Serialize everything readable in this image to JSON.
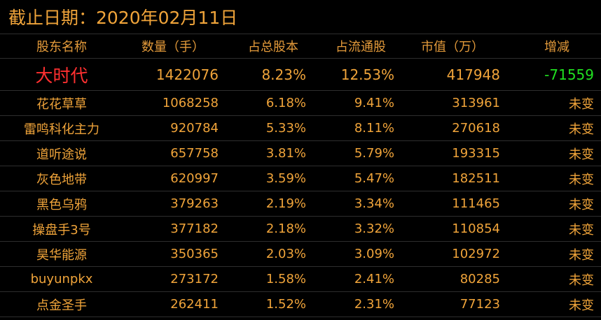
{
  "header": {
    "title": "截止日期：2020年02月11日"
  },
  "table": {
    "columns": [
      "股东名称",
      "数量（手）",
      "占总股本",
      "占流通股",
      "市值（万）",
      "增减"
    ],
    "rows": [
      [
        "大时代",
        "1422076",
        "8.23%",
        "12.53%",
        "417948",
        "-71559"
      ],
      [
        "花花草草",
        "1068258",
        "6.18%",
        "9.41%",
        "313961",
        "未变"
      ],
      [
        "雷鸣科化主力",
        "920784",
        "5.33%",
        "8.11%",
        "270618",
        "未变"
      ],
      [
        "道听途说",
        "657758",
        "3.81%",
        "5.79%",
        "193315",
        "未变"
      ],
      [
        "灰色地带",
        "620997",
        "3.59%",
        "5.47%",
        "182511",
        "未变"
      ],
      [
        "黑色乌鸦",
        "379263",
        "2.19%",
        "3.34%",
        "111465",
        "未变"
      ],
      [
        "操盘手3号",
        "377182",
        "2.18%",
        "3.32%",
        "110854",
        "未变"
      ],
      [
        "昊华能源",
        "350365",
        "2.03%",
        "3.09%",
        "102972",
        "未变"
      ],
      [
        "buyunpkx",
        "273172",
        "1.58%",
        "2.41%",
        "80285",
        "未变"
      ],
      [
        "点金圣手",
        "262411",
        "1.52%",
        "2.31%",
        "77123",
        "未变"
      ]
    ]
  }
}
